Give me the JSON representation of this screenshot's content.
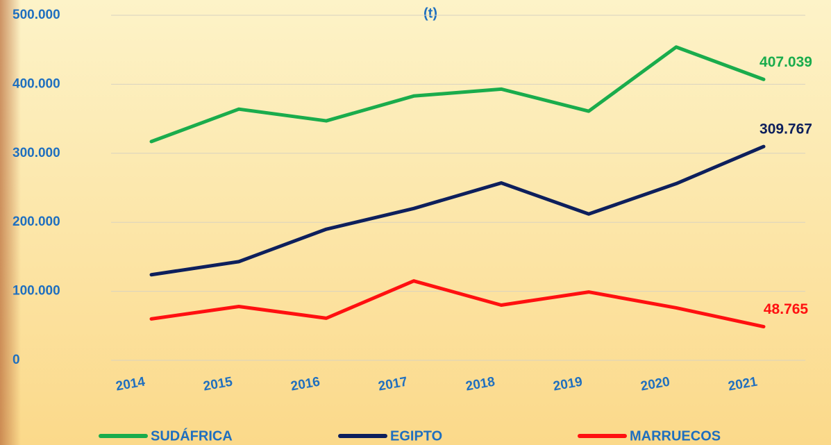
{
  "chart_data": {
    "type": "line",
    "title": "(t)",
    "categories": [
      "2014",
      "2015",
      "2016",
      "2017",
      "2018",
      "2019",
      "2020",
      "2021"
    ],
    "series": [
      {
        "name": "SUDÁFRICA",
        "color": "#1aac4c",
        "values": [
          317000,
          364000,
          347000,
          383000,
          393000,
          361000,
          454000,
          407039
        ],
        "value_labels": [
          null,
          null,
          null,
          null,
          null,
          null,
          null,
          "407.039"
        ]
      },
      {
        "name": "EGIPTO",
        "color": "#0d1f5c",
        "values": [
          124000,
          143000,
          190000,
          220000,
          257000,
          212000,
          256000,
          309767
        ],
        "value_labels": [
          null,
          null,
          null,
          null,
          null,
          null,
          null,
          "309.767"
        ]
      },
      {
        "name": "MARRUECOS",
        "color": "#ff1010",
        "values": [
          60000,
          78000,
          61000,
          115000,
          80000,
          99000,
          76000,
          48765
        ],
        "value_labels": [
          null,
          null,
          null,
          null,
          null,
          null,
          null,
          "48.765"
        ]
      }
    ],
    "ylim": [
      0,
      500000
    ],
    "yticks": [
      0,
      {
        "value": 100000,
        "label": "100.000"
      },
      {
        "value": 200000,
        "label": "200.000"
      },
      {
        "value": 300000,
        "label": "300.000"
      },
      {
        "value": 400000,
        "label": "400.000"
      },
      {
        "value": 500000,
        "label": "500.000"
      }
    ],
    "grid": true,
    "legend": "bottom"
  }
}
